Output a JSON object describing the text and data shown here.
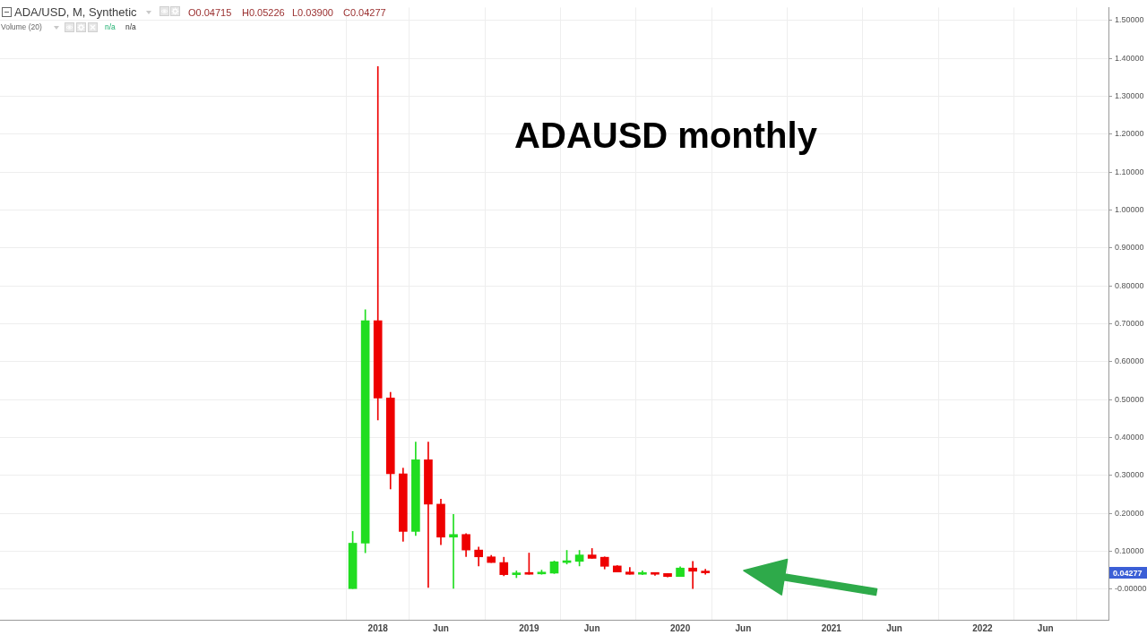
{
  "chart_data": {
    "type": "candlestick",
    "title": "ADAUSD monthly",
    "x": [
      "2017-11",
      "2017-12",
      "2018-01",
      "2018-02",
      "2018-03",
      "2018-04",
      "2018-05",
      "2018-06",
      "2018-07",
      "2018-08",
      "2018-09",
      "2018-10",
      "2018-11",
      "2018-12",
      "2019-01",
      "2019-02",
      "2019-03",
      "2019-04",
      "2019-05",
      "2019-06",
      "2019-07",
      "2019-08",
      "2019-09",
      "2019-10",
      "2019-11",
      "2019-12",
      "2020-01",
      "2020-02",
      "2020-03"
    ],
    "ohlc": [
      [
        0.0,
        0.152,
        0.0,
        0.121
      ],
      [
        0.121,
        0.737,
        0.096,
        0.708
      ],
      [
        0.708,
        1.378,
        0.446,
        0.504
      ],
      [
        0.504,
        0.519,
        0.264,
        0.304
      ],
      [
        0.304,
        0.319,
        0.126,
        0.152
      ],
      [
        0.152,
        0.388,
        0.141,
        0.341
      ],
      [
        0.341,
        0.388,
        0.004,
        0.224
      ],
      [
        0.224,
        0.237,
        0.117,
        0.137
      ],
      [
        0.137,
        0.197,
        0.002,
        0.144
      ],
      [
        0.144,
        0.146,
        0.086,
        0.103
      ],
      [
        0.103,
        0.111,
        0.061,
        0.085
      ],
      [
        0.085,
        0.089,
        0.07,
        0.07
      ],
      [
        0.07,
        0.084,
        0.035,
        0.038
      ],
      [
        0.038,
        0.048,
        0.03,
        0.041
      ],
      [
        0.041,
        0.095,
        0.039,
        0.039
      ],
      [
        0.04,
        0.05,
        0.039,
        0.044
      ],
      [
        0.042,
        0.074,
        0.041,
        0.072
      ],
      [
        0.07,
        0.102,
        0.066,
        0.074
      ],
      [
        0.073,
        0.102,
        0.061,
        0.09
      ],
      [
        0.09,
        0.107,
        0.081,
        0.081
      ],
      [
        0.084,
        0.085,
        0.053,
        0.06
      ],
      [
        0.061,
        0.062,
        0.045,
        0.045
      ],
      [
        0.045,
        0.057,
        0.039,
        0.039
      ],
      [
        0.039,
        0.048,
        0.038,
        0.041
      ],
      [
        0.041,
        0.043,
        0.036,
        0.039
      ],
      [
        0.041,
        0.041,
        0.032,
        0.033
      ],
      [
        0.033,
        0.059,
        0.033,
        0.0555
      ],
      [
        0.0555,
        0.073,
        0.001,
        0.047
      ],
      [
        0.04715,
        0.05226,
        0.039,
        0.04277
      ]
    ],
    "colors": [
      "#20dd20",
      "#20dd20",
      "#ee0000",
      "#ee0000",
      "#ee0000",
      "#20dd20",
      "#ee0000",
      "#ee0000",
      "#20dd20",
      "#ee0000",
      "#ee0000",
      "#ee0000",
      "#ee0000",
      "#20dd20",
      "#ee0000",
      "#20dd20",
      "#20dd20",
      "#20dd20",
      "#20dd20",
      "#ee0000",
      "#ee0000",
      "#ee0000",
      "#ee0000",
      "#20dd20",
      "#ee0000",
      "#ee0000",
      "#20dd20",
      "#ee0000",
      "#ee0000"
    ],
    "xlim": [
      "2015-07",
      "2022-11"
    ],
    "xticks": [
      {
        "value": "2018-01",
        "label": "2018"
      },
      {
        "value": "2018-06",
        "label": "Jun"
      },
      {
        "value": "2019-01",
        "label": "2019"
      },
      {
        "value": "2019-06",
        "label": "Jun"
      },
      {
        "value": "2020-01",
        "label": "2020"
      },
      {
        "value": "2020-06",
        "label": "Jun"
      },
      {
        "value": "2021-01",
        "label": "2021"
      },
      {
        "value": "2021-06",
        "label": "Jun"
      },
      {
        "value": "2022-01",
        "label": "2022"
      },
      {
        "value": "2022-06",
        "label": "Jun"
      }
    ],
    "ylim": [
      -0.081,
      1.534
    ],
    "yticks": [
      {
        "value": 0,
        "label": "-0.00000"
      },
      {
        "value": 0.1,
        "label": "0.10000"
      },
      {
        "value": 0.2,
        "label": "0.20000"
      },
      {
        "value": 0.3,
        "label": "0.30000"
      },
      {
        "value": 0.4,
        "label": "0.40000"
      },
      {
        "value": 0.5,
        "label": "0.50000"
      },
      {
        "value": 0.6,
        "label": "0.60000"
      },
      {
        "value": 0.7,
        "label": "0.70000"
      },
      {
        "value": 0.8,
        "label": "0.80000"
      },
      {
        "value": 0.9,
        "label": "0.90000"
      },
      {
        "value": 1.0,
        "label": "1.00000"
      },
      {
        "value": 1.1,
        "label": "1.10000"
      },
      {
        "value": 1.2,
        "label": "1.20000"
      },
      {
        "value": 1.3,
        "label": "1.30000"
      },
      {
        "value": 1.4,
        "label": "1.40000"
      },
      {
        "value": 1.5,
        "label": "1.50000"
      }
    ],
    "grid": true,
    "annotations": [
      "ADA/USD, M, Synthetic",
      "O0.04715",
      "H0.05226",
      "L0.03900",
      "C0.04277",
      "Volume (20)",
      "n/a",
      "n/a",
      {
        "text": "0.04277",
        "y": 0.04277
      }
    ]
  }
}
